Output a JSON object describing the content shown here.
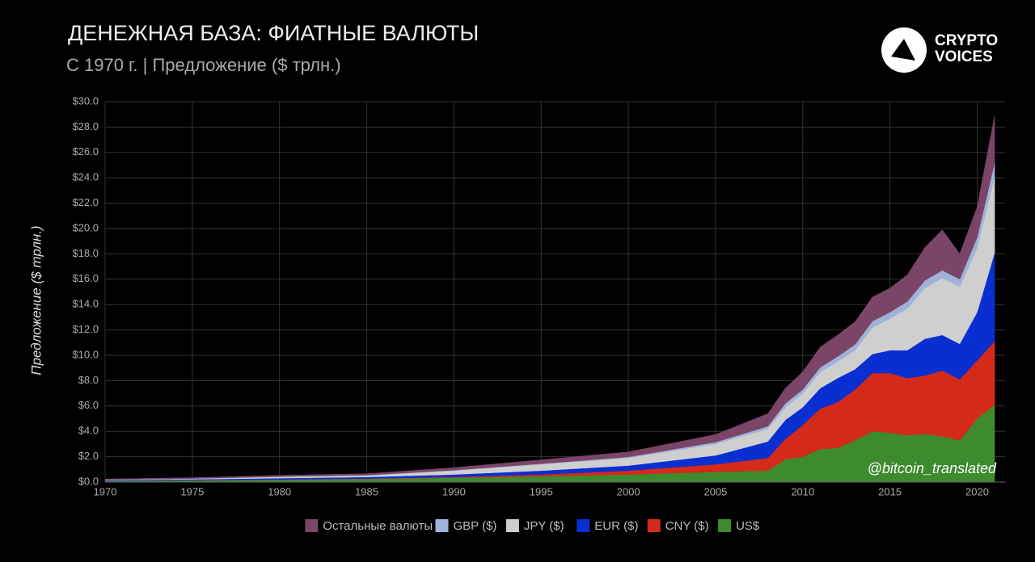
{
  "chart_data": {
    "type": "stacked_area",
    "title": "ДЕНЕЖНАЯ БАЗА: ФИАТНЫЕ ВАЛЮТЫ",
    "subtitle": "С 1970 г. | Предложение ($ трлн.)",
    "y_label": "Предложение ($ трлн.)",
    "annotation": "@bitcoin_translated",
    "x": [
      1970,
      1975,
      1980,
      1985,
      1990,
      1995,
      2000,
      2005,
      2008,
      2009,
      2010,
      2011,
      2012,
      2013,
      2014,
      2015,
      2016,
      2017,
      2018,
      2019,
      2020,
      2021
    ],
    "series": [
      {
        "name": "Остальные валюты",
        "color": "#7a4566",
        "values": [
          0.05,
          0.07,
          0.1,
          0.12,
          0.2,
          0.3,
          0.4,
          0.6,
          1.0,
          1.2,
          1.4,
          1.6,
          1.7,
          1.8,
          1.9,
          1.9,
          2.1,
          2.6,
          3.2,
          2.0,
          2.4,
          3.7
        ]
      },
      {
        "name": "GBP ($)",
        "color": "#9fb3da",
        "values": [
          0.01,
          0.01,
          0.02,
          0.02,
          0.04,
          0.05,
          0.08,
          0.15,
          0.2,
          0.3,
          0.3,
          0.35,
          0.4,
          0.45,
          0.5,
          0.5,
          0.55,
          0.6,
          0.6,
          0.6,
          0.8,
          1.1
        ]
      },
      {
        "name": "JPY ($)",
        "color": "#cfcfcf",
        "values": [
          0.03,
          0.05,
          0.1,
          0.12,
          0.3,
          0.5,
          0.6,
          0.9,
          1.0,
          1.0,
          1.1,
          1.3,
          1.3,
          1.5,
          2.1,
          2.5,
          3.3,
          4.0,
          4.5,
          4.5,
          5.1,
          6.0
        ]
      },
      {
        "name": "EUR ($)",
        "color": "#0a2fd0",
        "values": [
          0.05,
          0.07,
          0.1,
          0.12,
          0.2,
          0.3,
          0.4,
          0.7,
          1.3,
          1.5,
          1.4,
          1.6,
          1.9,
          1.6,
          1.5,
          1.8,
          2.2,
          2.9,
          2.8,
          2.8,
          3.8,
          7.0
        ]
      },
      {
        "name": "CNY ($)",
        "color": "#d42a1a",
        "values": [
          0,
          0,
          0.01,
          0.03,
          0.05,
          0.15,
          0.3,
          0.6,
          1.0,
          1.6,
          2.5,
          3.2,
          3.6,
          4.0,
          4.6,
          4.7,
          4.5,
          4.6,
          5.2,
          4.8,
          4.6,
          5.0
        ]
      },
      {
        "name": "US$",
        "color": "#3e8a2e",
        "values": [
          0.1,
          0.15,
          0.2,
          0.25,
          0.35,
          0.45,
          0.6,
          0.8,
          0.9,
          1.8,
          2.0,
          2.6,
          2.7,
          3.3,
          4.0,
          3.9,
          3.7,
          3.8,
          3.6,
          3.3,
          5.0,
          6.1
        ]
      }
    ],
    "xlim": [
      1970,
      2021.6
    ],
    "ylim": [
      0,
      30
    ],
    "xticks": [
      1970,
      1975,
      1980,
      1985,
      1990,
      1995,
      2000,
      2005,
      2010,
      2015,
      2020
    ],
    "yticks": [
      {
        "value": 0,
        "label": "$0.0"
      },
      {
        "value": 2,
        "label": "$2.0"
      },
      {
        "value": 4,
        "label": "$4.0"
      },
      {
        "value": 6,
        "label": "$6.0"
      },
      {
        "value": 8,
        "label": "$8.0"
      },
      {
        "value": 10,
        "label": "$10.0"
      },
      {
        "value": 12,
        "label": "$12.0"
      },
      {
        "value": 14,
        "label": "$14.0"
      },
      {
        "value": 16,
        "label": "$16.0"
      },
      {
        "value": 18,
        "label": "$18.0"
      },
      {
        "value": 20,
        "label": "$20.0"
      },
      {
        "value": 22,
        "label": "$22.0"
      },
      {
        "value": 24,
        "label": "$24.0"
      },
      {
        "value": 26,
        "label": "$26.0"
      },
      {
        "value": 28,
        "label": "$28.0"
      },
      {
        "value": 30,
        "label": "$30.0"
      }
    ],
    "grid": true
  },
  "logo": [
    "CRYPTO",
    "VOICES"
  ]
}
